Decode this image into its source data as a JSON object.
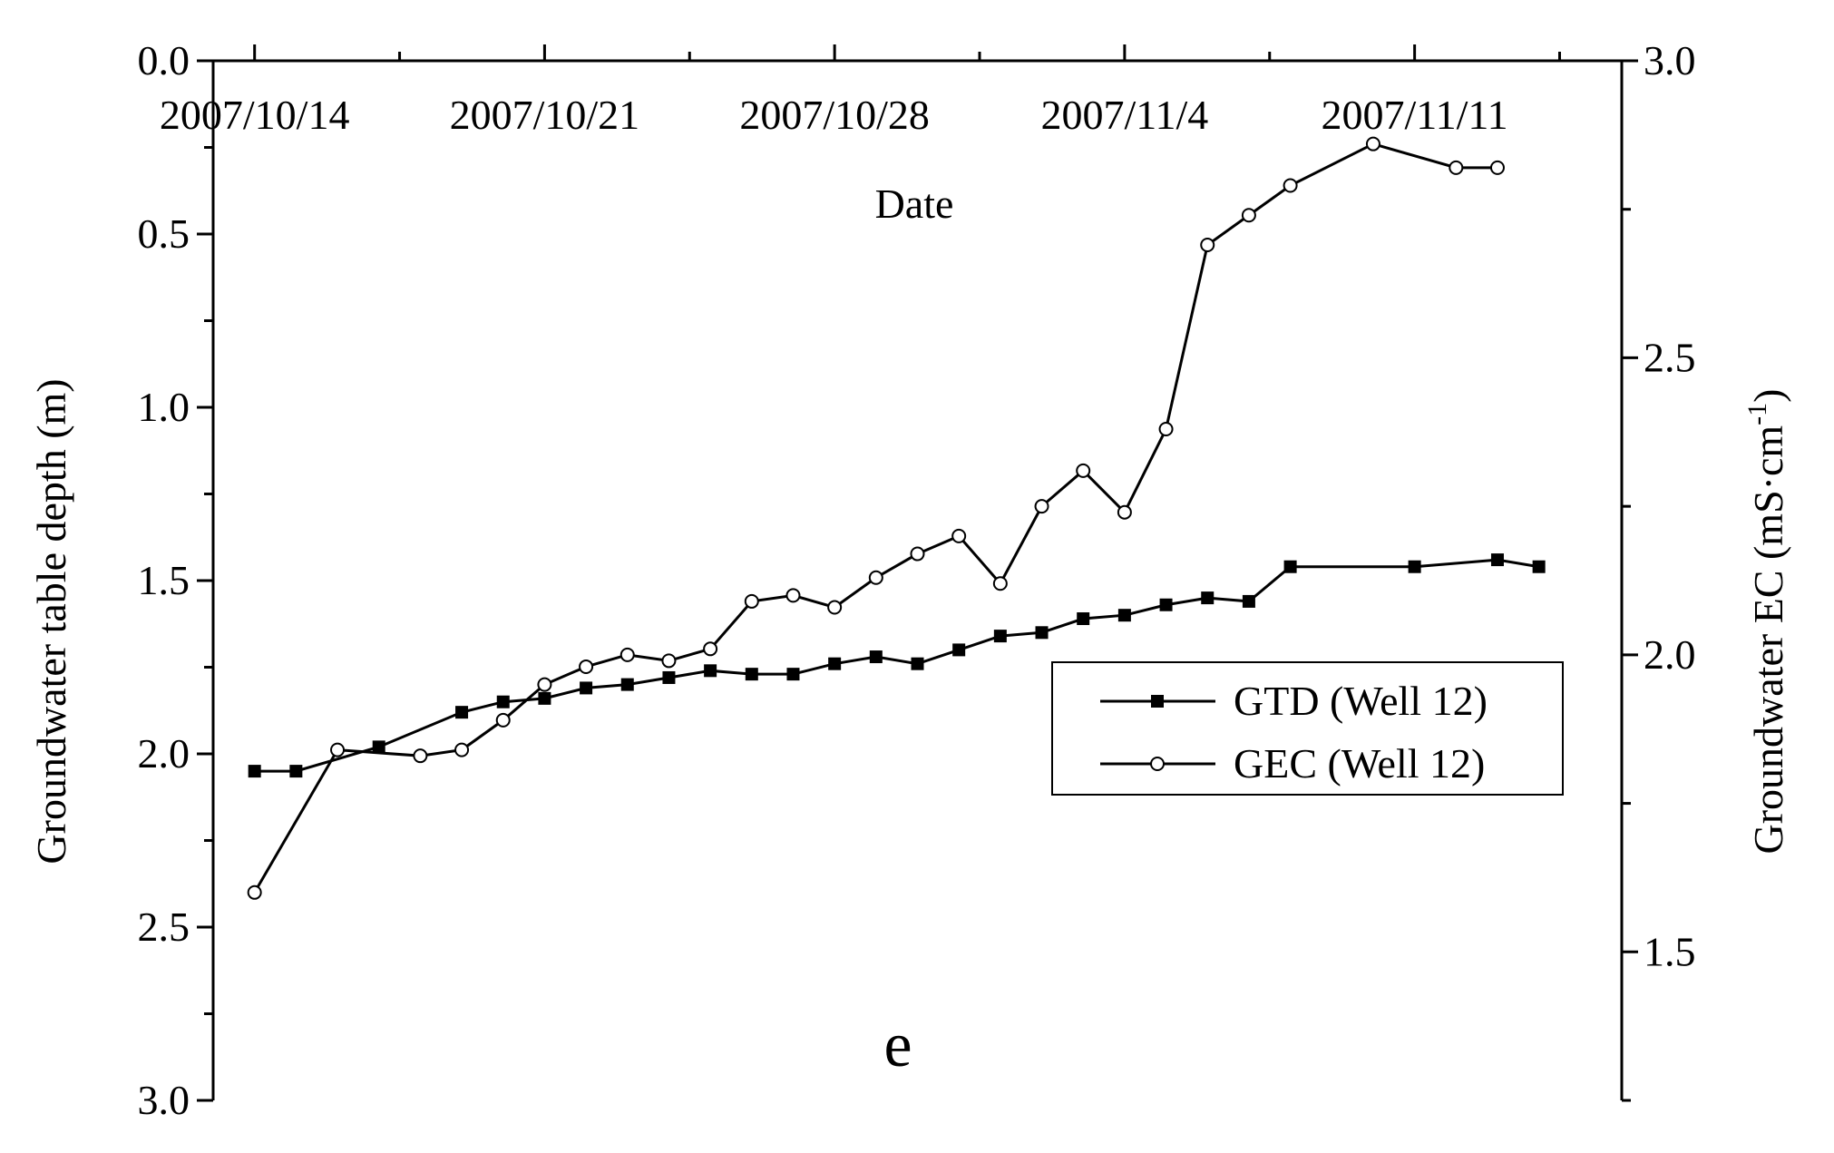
{
  "chart_data": {
    "type": "line",
    "xlabel": "Date",
    "ylabel_left": "Groundwater table depth (m)",
    "ylabel_right": "Groundwater EC (mS·cm",
    "ylabel_right_sup": "-1",
    "ylabel_right_close": ")",
    "panel_label": "e",
    "x_range": [
      "2007/10/13",
      "2007/11/16"
    ],
    "x_ticks": [
      "2007/10/14",
      "2007/10/21",
      "2007/10/28",
      "2007/11/4",
      "2007/11/11"
    ],
    "y_left": {
      "range": [
        0.0,
        3.0
      ],
      "inverted": true,
      "ticks": [
        "0.0",
        "0.5",
        "1.0",
        "1.5",
        "2.0",
        "2.5",
        "3.0"
      ]
    },
    "y_right": {
      "range": [
        1.25,
        3.0
      ],
      "ticks": [
        "1.5",
        "2.0",
        "2.5",
        "3.0"
      ]
    },
    "legend_position": "middle-right",
    "series": [
      {
        "name": "GTD (Well 12)",
        "axis": "left",
        "marker": "filled-square",
        "x": [
          "2007/10/14",
          "2007/10/15",
          "2007/10/17",
          "2007/10/19",
          "2007/10/20",
          "2007/10/21",
          "2007/10/22",
          "2007/10/23",
          "2007/10/24",
          "2007/10/25",
          "2007/10/26",
          "2007/10/27",
          "2007/10/28",
          "2007/10/29",
          "2007/10/30",
          "2007/10/31",
          "2007/11/1",
          "2007/11/2",
          "2007/11/3",
          "2007/11/4",
          "2007/11/5",
          "2007/11/6",
          "2007/11/7",
          "2007/11/8",
          "2007/11/11",
          "2007/11/13",
          "2007/11/14"
        ],
        "values": [
          2.05,
          2.05,
          1.98,
          1.88,
          1.85,
          1.84,
          1.81,
          1.8,
          1.78,
          1.76,
          1.77,
          1.77,
          1.74,
          1.72,
          1.74,
          1.7,
          1.66,
          1.65,
          1.61,
          1.6,
          1.57,
          1.55,
          1.56,
          1.46,
          1.46,
          1.44,
          1.46
        ]
      },
      {
        "name": "GEC (Well 12)",
        "axis": "right",
        "marker": "open-circle",
        "x": [
          "2007/10/14",
          "2007/10/16",
          "2007/10/18",
          "2007/10/19",
          "2007/10/20",
          "2007/10/21",
          "2007/10/22",
          "2007/10/23",
          "2007/10/24",
          "2007/10/25",
          "2007/10/26",
          "2007/10/27",
          "2007/10/28",
          "2007/10/29",
          "2007/10/30",
          "2007/10/31",
          "2007/11/1",
          "2007/11/2",
          "2007/11/3",
          "2007/11/4",
          "2007/11/5",
          "2007/11/6",
          "2007/11/7",
          "2007/11/8",
          "2007/11/10",
          "2007/11/12",
          "2007/11/13"
        ],
        "values": [
          1.6,
          1.84,
          1.83,
          1.84,
          1.89,
          1.95,
          1.98,
          2.0,
          1.99,
          2.01,
          2.09,
          2.1,
          2.08,
          2.13,
          2.17,
          2.2,
          2.12,
          2.25,
          2.31,
          2.24,
          2.38,
          2.69,
          2.74,
          2.79,
          2.86,
          2.82,
          2.82
        ]
      }
    ]
  }
}
